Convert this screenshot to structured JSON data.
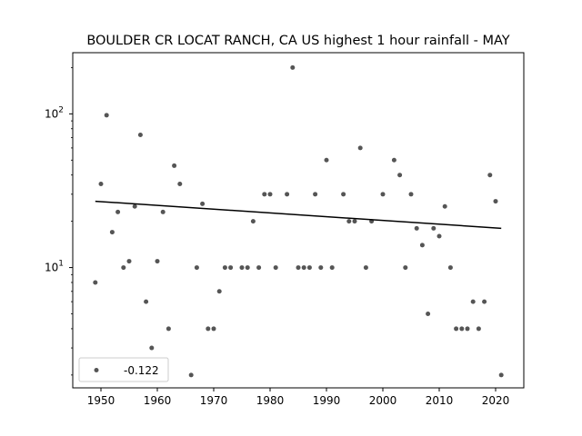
{
  "chart_data": {
    "type": "scatter",
    "title": "BOULDER CR LOCAT RANCH, CA US highest 1 hour rainfall - MAY",
    "xlabel": "",
    "ylabel": "",
    "y_scale": "log",
    "xlim": [
      1945,
      2025
    ],
    "ylim": [
      1.65,
      250
    ],
    "x_ticks": [
      1950,
      1960,
      1970,
      1980,
      1990,
      2000,
      2010,
      2020
    ],
    "y_ticks": [
      {
        "value": 10,
        "base": "10",
        "exp": "1"
      },
      {
        "value": 100,
        "base": "10",
        "exp": "2"
      }
    ],
    "grid": false,
    "legend_position": "lower-left",
    "series": [
      {
        "name": "-0.122",
        "marker_color": "#555555",
        "points": [
          [
            1949,
            8
          ],
          [
            1950,
            35
          ],
          [
            1951,
            98
          ],
          [
            1952,
            17
          ],
          [
            1953,
            23
          ],
          [
            1954,
            10
          ],
          [
            1955,
            11
          ],
          [
            1956,
            25
          ],
          [
            1957,
            73
          ],
          [
            1958,
            6
          ],
          [
            1959,
            3
          ],
          [
            1960,
            11
          ],
          [
            1961,
            23
          ],
          [
            1962,
            4
          ],
          [
            1963,
            46
          ],
          [
            1964,
            35
          ],
          [
            1966,
            2
          ],
          [
            1967,
            10
          ],
          [
            1968,
            26
          ],
          [
            1969,
            4
          ],
          [
            1970,
            4
          ],
          [
            1971,
            7
          ],
          [
            1972,
            10
          ],
          [
            1973,
            10
          ],
          [
            1975,
            10
          ],
          [
            1976,
            10
          ],
          [
            1977,
            20
          ],
          [
            1978,
            10
          ],
          [
            1979,
            30
          ],
          [
            1980,
            30
          ],
          [
            1981,
            10
          ],
          [
            1983,
            30
          ],
          [
            1984,
            200
          ],
          [
            1985,
            10
          ],
          [
            1986,
            10
          ],
          [
            1987,
            10
          ],
          [
            1988,
            30
          ],
          [
            1989,
            10
          ],
          [
            1990,
            50
          ],
          [
            1991,
            10
          ],
          [
            1993,
            30
          ],
          [
            1994,
            20
          ],
          [
            1995,
            20
          ],
          [
            1996,
            60
          ],
          [
            1997,
            10
          ],
          [
            1998,
            20
          ],
          [
            2000,
            30
          ],
          [
            2002,
            50
          ],
          [
            2003,
            40
          ],
          [
            2004,
            10
          ],
          [
            2005,
            30
          ],
          [
            2006,
            18
          ],
          [
            2007,
            14
          ],
          [
            2008,
            5
          ],
          [
            2009,
            18
          ],
          [
            2010,
            16
          ],
          [
            2011,
            25
          ],
          [
            2012,
            10
          ],
          [
            2013,
            4
          ],
          [
            2014,
            4
          ],
          [
            2015,
            4
          ],
          [
            2016,
            6
          ],
          [
            2017,
            4
          ],
          [
            2018,
            6
          ],
          [
            2019,
            40
          ],
          [
            2020,
            27
          ],
          [
            2021,
            2
          ]
        ]
      }
    ],
    "trend_line": {
      "color": "#000000",
      "points": [
        [
          1949,
          27
        ],
        [
          2021,
          18
        ]
      ]
    }
  }
}
